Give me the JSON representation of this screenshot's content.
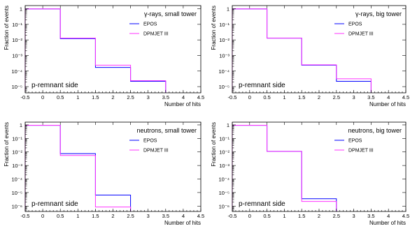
{
  "figure": {
    "ylabel": "Fraction of events",
    "xlabel": "Number of hits"
  },
  "chart_data": [
    {
      "type": "histogram-step",
      "title": "γ-rays, small tower",
      "annotation": "p-remnant side",
      "xlabel": "Number of hits",
      "ylabel": "Fraction of events",
      "xlim": [
        -0.5,
        4.5
      ],
      "ylim": [
        4e-06,
        1.6
      ],
      "yscale": "log",
      "xticks": [
        "-0.5",
        "0",
        "0.5",
        "1",
        "1.5",
        "2",
        "2.5",
        "3",
        "3.5",
        "4",
        "4.5"
      ],
      "yticks": [
        "1",
        "10⁻¹",
        "10⁻²",
        "10⁻³",
        "10⁻⁴",
        "10⁻⁵"
      ],
      "bin_edges": [
        -0.5,
        0.5,
        1.5,
        2.5,
        3.5
      ],
      "legend_position": "top-right",
      "series": [
        {
          "name": "EPOS",
          "color": "#0000ff",
          "values": [
            0.98,
            0.012,
            0.00017,
            2.2e-05
          ]
        },
        {
          "name": "DPMJET III",
          "color": "#ff33ff",
          "values": [
            0.98,
            0.013,
            0.00024,
            2.4e-05
          ]
        }
      ]
    },
    {
      "type": "histogram-step",
      "title": "γ-rays, big tower",
      "annotation": "p-remnant side",
      "xlabel": "Number of hits",
      "ylabel": "Fraction of events",
      "xlim": [
        -0.5,
        4.5
      ],
      "ylim": [
        4e-06,
        1.6
      ],
      "yscale": "log",
      "xticks": [
        "-0.5",
        "0",
        "0.5",
        "1",
        "1.5",
        "2",
        "2.5",
        "3",
        "3.5",
        "4",
        "4.5"
      ],
      "yticks": [
        "1",
        "10⁻¹",
        "10⁻²",
        "10⁻³",
        "10⁻⁴",
        "10⁻⁵"
      ],
      "bin_edges": [
        -0.5,
        0.5,
        1.5,
        2.5,
        3.5
      ],
      "legend_position": "top-right",
      "series": [
        {
          "name": "EPOS",
          "color": "#0000ff",
          "values": [
            0.98,
            0.013,
            0.00024,
            2.2e-05
          ]
        },
        {
          "name": "DPMJET III",
          "color": "#ff33ff",
          "values": [
            0.98,
            0.013,
            0.00025,
            3.2e-05
          ]
        }
      ]
    },
    {
      "type": "histogram-step",
      "title": "neutrons, small tower",
      "annotation": "p-remnant side",
      "xlabel": "Number of hits",
      "ylabel": "Fraction of events",
      "xlim": [
        -0.5,
        4.5
      ],
      "ylim": [
        4e-07,
        1.6
      ],
      "yscale": "log",
      "xticks": [
        "-0.5",
        "0",
        "0.5",
        "1",
        "1.5",
        "2",
        "2.5",
        "3",
        "3.5",
        "4",
        "4.5"
      ],
      "yticks": [
        "1",
        "10⁻¹",
        "10⁻²",
        "10⁻³",
        "10⁻⁴",
        "10⁻⁵",
        "10⁻⁶"
      ],
      "bin_edges": [
        -0.5,
        0.5,
        1.5,
        2.5
      ],
      "legend_position": "top-right",
      "series": [
        {
          "name": "EPOS",
          "color": "#0000ff",
          "values": [
            0.93,
            0.0075,
            6.5e-06
          ]
        },
        {
          "name": "DPMJET III",
          "color": "#ff33ff",
          "values": [
            0.94,
            0.0055,
            8.5e-07
          ]
        }
      ]
    },
    {
      "type": "histogram-step",
      "title": "neutrons, big tower",
      "annotation": "p-remnant side",
      "xlabel": "Number of hits",
      "ylabel": "Fraction of events",
      "xlim": [
        -0.5,
        4.5
      ],
      "ylim": [
        4e-07,
        1.6
      ],
      "yscale": "log",
      "xticks": [
        "-0.5",
        "0",
        "0.5",
        "1",
        "1.5",
        "2",
        "2.5",
        "3",
        "3.5",
        "4",
        "4.5"
      ],
      "yticks": [
        "1",
        "10⁻¹",
        "10⁻²",
        "10⁻³",
        "10⁻⁴",
        "10⁻⁵",
        "10⁻⁶"
      ],
      "bin_edges": [
        -0.5,
        0.5,
        1.5,
        2.5
      ],
      "legend_position": "top-right",
      "series": [
        {
          "name": "EPOS",
          "color": "#0000ff",
          "values": [
            0.93,
            0.011,
            3.5e-06
          ]
        },
        {
          "name": "DPMJET III",
          "color": "#ff33ff",
          "values": [
            0.94,
            0.011,
            2.2e-06
          ]
        }
      ]
    }
  ]
}
